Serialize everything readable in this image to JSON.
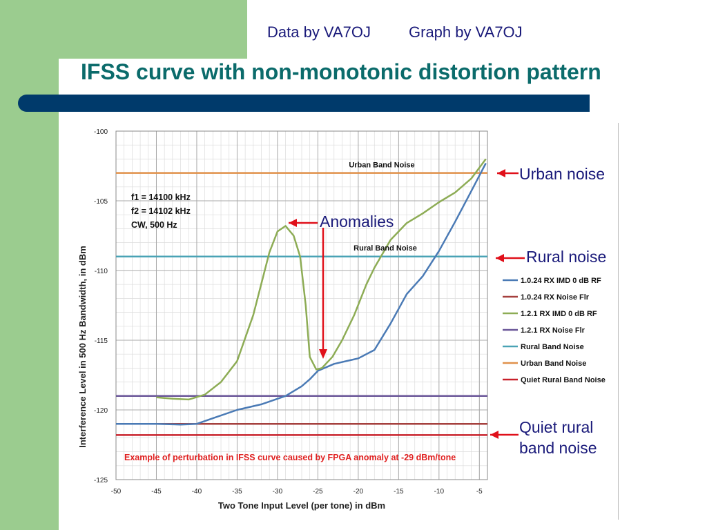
{
  "header": {
    "credit_data": "Data by VA7OJ",
    "credit_graph": "Graph by VA7OJ",
    "title": "IFSS curve with non-monotonic distortion pattern"
  },
  "callouts": {
    "urban": "Urban noise",
    "rural": "Rural noise",
    "anomalies": "Anomalies",
    "quiet_line1": "Quiet rural",
    "quiet_line2": "band noise"
  },
  "chart_data": {
    "type": "line",
    "xlabel": "Two Tone Input Level  (per tone) in dBm",
    "ylabel": "Interference Level in 500 Hz Bandwidth, in dBm",
    "xlim": [
      -50,
      -4
    ],
    "ylim": [
      -125,
      -100
    ],
    "x_ticks": [
      -50,
      -45,
      -40,
      -35,
      -30,
      -25,
      -20,
      -15,
      -10,
      -5
    ],
    "y_ticks": [
      -100,
      -105,
      -110,
      -115,
      -120,
      -125
    ],
    "grid": true,
    "inset_text": [
      "f1 = 14100 kHz",
      "f2 = 14102 kHz",
      "CW, 500 Hz"
    ],
    "annotation": "Example of perturbation in IFSS curve caused by FPGA anomaly at -29 dBm/tone",
    "line_labels": {
      "urban": "Urban Band Noise",
      "rural": "Rural  Band Noise"
    },
    "legend_position": "right",
    "series": [
      {
        "name": "1.0.24 RX IMD 0 dB RF",
        "color": "#4a7ab5",
        "x": [
          -50,
          -45,
          -42,
          -40,
          -38,
          -35,
          -32,
          -29,
          -27,
          -26,
          -25,
          -23,
          -20,
          -18,
          -16,
          -14,
          -12,
          -10,
          -8,
          -6,
          -4.2
        ],
        "y": [
          -121,
          -121,
          -121.05,
          -121,
          -120.6,
          -120,
          -119.6,
          -119,
          -118.3,
          -117.8,
          -117.2,
          -116.7,
          -116.3,
          -115.7,
          -113.8,
          -111.7,
          -110.4,
          -108.6,
          -106.5,
          -104.3,
          -102.3
        ]
      },
      {
        "name": "1.0.24 RX Noise Flr",
        "color": "#a5403e",
        "x": [
          -50,
          -4
        ],
        "y": [
          -121,
          -121
        ]
      },
      {
        "name": "1.2.1 RX IMD 0 dB RF",
        "color": "#8dac55",
        "x": [
          -45,
          -43,
          -41,
          -39,
          -37,
          -35,
          -33,
          -31,
          -30,
          -29,
          -28,
          -27.2,
          -26.5,
          -26,
          -25.2,
          -24.5,
          -23.2,
          -22,
          -20.5,
          -19,
          -18,
          -16,
          -14,
          -12,
          -10,
          -8,
          -6,
          -4.2
        ],
        "y": [
          -119.1,
          -119.2,
          -119.25,
          -118.9,
          -118,
          -116.5,
          -113.2,
          -108.7,
          -107.2,
          -106.8,
          -107.5,
          -109,
          -112.5,
          -116.2,
          -117.1,
          -117.0,
          -116.2,
          -115,
          -113.2,
          -111,
          -109.8,
          -107.8,
          -106.6,
          -105.9,
          -105.1,
          -104.4,
          -103.4,
          -102
        ]
      },
      {
        "name": "1.2.1 RX Noise Flr",
        "color": "#6a5698",
        "x": [
          -50,
          -4
        ],
        "y": [
          -119,
          -119
        ]
      },
      {
        "name": "Rural Band Noise",
        "color": "#4aa3b5",
        "x": [
          -50,
          -4
        ],
        "y": [
          -109,
          -109
        ]
      },
      {
        "name": "Urban Band Noise",
        "color": "#e0914a",
        "x": [
          -50,
          -4
        ],
        "y": [
          -103,
          -103
        ]
      },
      {
        "name": "Quiet Rural Band Noise",
        "color": "#c8202a",
        "x": [
          -50,
          -4
        ],
        "y": [
          -121.8,
          -121.8
        ]
      }
    ]
  }
}
